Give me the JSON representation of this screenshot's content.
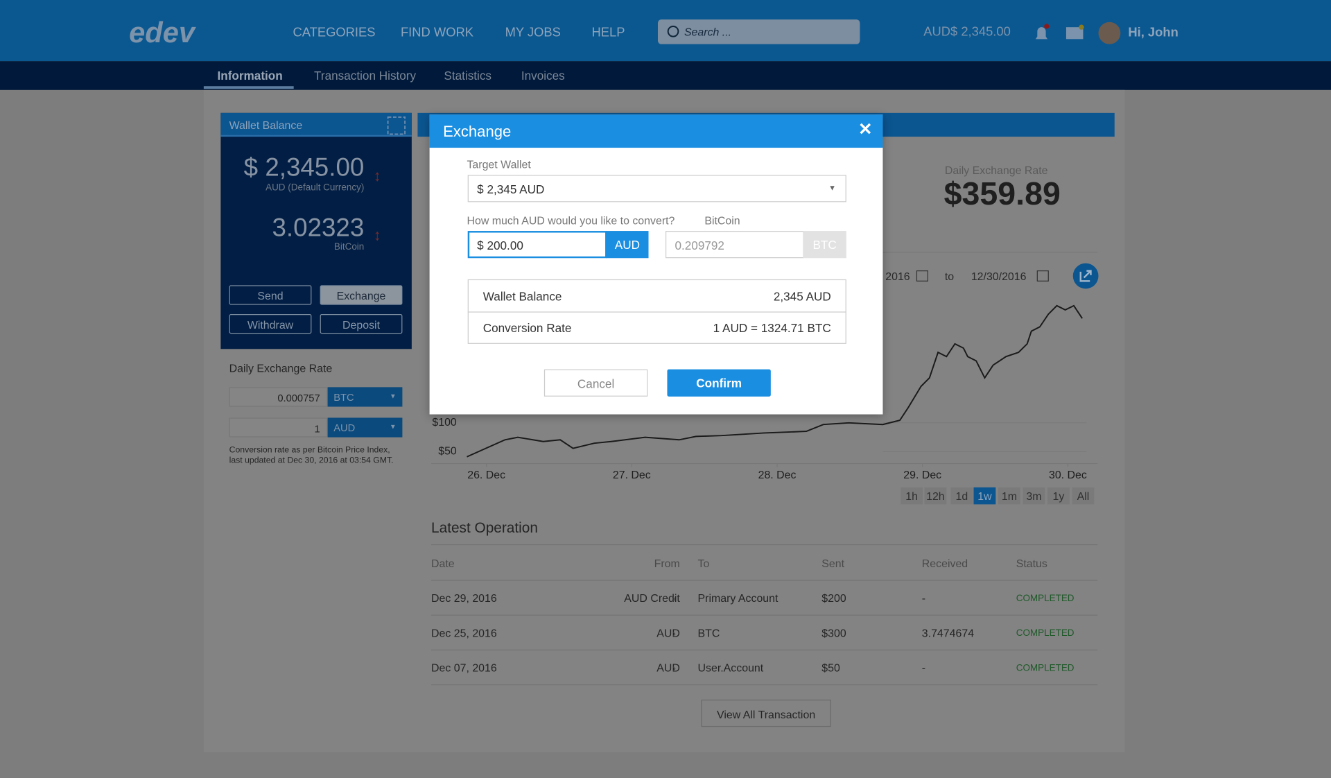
{
  "header": {
    "logo": "edev",
    "nav": [
      "CATEGORIES",
      "FIND WORK",
      "MY JOBS",
      "HELP"
    ],
    "search_placeholder": "Search ...",
    "balance": "AUD$ 2,345.00",
    "greeting": "Hi, John"
  },
  "tabs": [
    "Information",
    "Transaction History",
    "Statistics",
    "Invoices"
  ],
  "wallet": {
    "title": "Wallet Balance",
    "aud_amount": "$ 2,345.00",
    "aud_label": "AUD (Default Currency)",
    "btc_amount": "3.02323",
    "btc_label": "BitCoin",
    "buttons": [
      "Send",
      "Exchange",
      "Withdraw",
      "Deposit"
    ]
  },
  "daily_rate": {
    "title": "Daily Exchange Rate",
    "rows": [
      {
        "value": "0.000757",
        "currency": "BTC"
      },
      {
        "value": "1",
        "currency": "AUD"
      }
    ],
    "note": "Conversion rate as per Bitcoin Price Index, last updated at Dec 30, 2016 at 03:54 GMT."
  },
  "stats": {
    "rate_label": "Daily Exchange Rate",
    "rate_value": "$359.89",
    "date_from": "2016",
    "to": "to",
    "date_to": "12/30/2016",
    "ranges": [
      "1h",
      "12h",
      "1d",
      "1w",
      "1m",
      "3m",
      "1y",
      "All"
    ],
    "active_range": 3
  },
  "chart_data": {
    "type": "line",
    "x": [
      25.866,
      26.128,
      26.216,
      26.391,
      26.508,
      26.596,
      26.742,
      26.858,
      27.092,
      27.326,
      27.442,
      27.617,
      27.909,
      28.201,
      28.318,
      28.493,
      28.727,
      28.844,
      28.902,
      28.99,
      29.048,
      29.107,
      29.165,
      29.223,
      29.282,
      29.311,
      29.369,
      29.428,
      29.486,
      29.574,
      29.661,
      29.72,
      29.749,
      29.807,
      29.866,
      29.924,
      29.982,
      30.041,
      30.099
    ],
    "series": [
      {
        "color": "#1a1a1a",
        "values": [
          41.2,
          70.6,
          75,
          67.6,
          70.6,
          55.9,
          64.7,
          67.6,
          75,
          70.6,
          76.5,
          77.9,
          82.4,
          85.3,
          97.1,
          100,
          97.1,
          104.4,
          126.5,
          163.2,
          177.9,
          222.1,
          214.7,
          236.8,
          229.4,
          214.7,
          207.4,
          177.9,
          200,
          214.7,
          222.1,
          236.8,
          258.8,
          266.2,
          288.2,
          302.9,
          295.6,
          302.9,
          280.9
        ]
      }
    ],
    "xlim": [
      25.8,
      30.2
    ],
    "xticks": [
      {
        "value": 26,
        "label": "26. Dec"
      },
      {
        "value": 27,
        "label": "27. Dec"
      },
      {
        "value": 28,
        "label": "28. Dec"
      },
      {
        "value": 29,
        "label": "29. Dec"
      },
      {
        "value": 30,
        "label": "30. Dec"
      }
    ],
    "ylim": [
      30,
      320
    ],
    "yticks": [
      {
        "value": 50,
        "label": "$50"
      },
      {
        "value": 100,
        "label": "$100"
      }
    ],
    "grid": true
  },
  "latest": {
    "title": "Latest Operation",
    "columns": [
      "Date",
      "From",
      "To",
      "Sent",
      "Received",
      "Status"
    ],
    "rows": [
      [
        "Dec 29, 2016",
        "AUD Credit",
        "Primary Account",
        "$200",
        "-",
        "COMPLETED"
      ],
      [
        "Dec 25, 2016",
        "AUD",
        "BTC",
        "$300",
        "3.7474674",
        "COMPLETED"
      ],
      [
        "Dec 07, 2016",
        "AUD",
        "User.Account",
        "$50",
        "-",
        "COMPLETED"
      ]
    ],
    "button": "View All Transaction"
  },
  "modal": {
    "title": "Exchange",
    "target_label": "Target Wallet",
    "target_value": "$ 2,345 AUD",
    "amount_label": "How much AUD would you like to convert?",
    "amount_value": "$ 200.00",
    "amount_unit": "AUD",
    "btc_label": "BitCoin",
    "btc_value": "0.209792",
    "btc_unit": "BTC",
    "summary": [
      [
        "Wallet Balance",
        "2,345 AUD"
      ],
      [
        "Conversion Rate",
        "1 AUD = 1324.71 BTC"
      ]
    ],
    "cancel": "Cancel",
    "confirm": "Confirm"
  }
}
